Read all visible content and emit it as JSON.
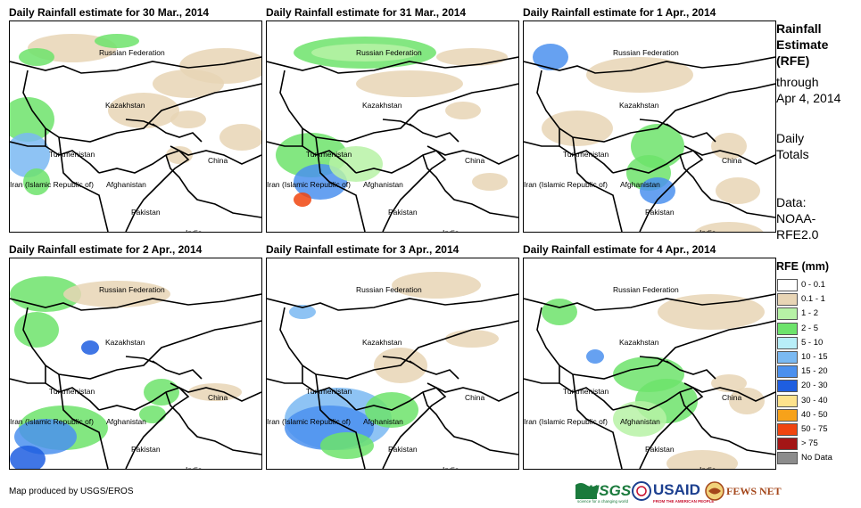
{
  "panels": [
    {
      "title": "Daily Rainfall estimate for 30 Mar., 2014"
    },
    {
      "title": "Daily Rainfall estimate for 31 Mar., 2014"
    },
    {
      "title": "Daily Rainfall estimate for 1 Apr., 2014"
    },
    {
      "title": "Daily Rainfall estimate for 2 Apr., 2014"
    },
    {
      "title": "Daily Rainfall estimate for 3 Apr., 2014"
    },
    {
      "title": "Daily Rainfall estimate for 4 Apr., 2014"
    }
  ],
  "countries": {
    "russia": "Russian Federation",
    "kazakhstan": "Kazakhstan",
    "turkmenistan": "Turkmenistan",
    "china": "China",
    "iran": "Iran  (Islamic Republic of)",
    "afghanistan": "Afghanistan",
    "pakistan": "Pakistan",
    "india": "India"
  },
  "side": {
    "line1": "Rainfall",
    "line2": "Estimate",
    "line3": "(RFE)",
    "line4": "through",
    "line5": "Apr 4, 2014",
    "line6": "Daily",
    "line7": "Totals",
    "line8": "Data:",
    "line9": "NOAA-",
    "line10": "RFE2.0"
  },
  "legend": {
    "title": "RFE (mm)",
    "items": [
      {
        "label": "0 - 0.1",
        "color": "#ffffff"
      },
      {
        "label": "0.1 - 1",
        "color": "#e8d5b5"
      },
      {
        "label": "1 - 2",
        "color": "#b7f2a6"
      },
      {
        "label": "2 - 5",
        "color": "#6de36b"
      },
      {
        "label": "5 - 10",
        "color": "#b8eef8"
      },
      {
        "label": "10 - 15",
        "color": "#7ab9f2"
      },
      {
        "label": "15 - 20",
        "color": "#4b90ee"
      },
      {
        "label": "20 - 30",
        "color": "#1e5ee0"
      },
      {
        "label": "30 - 40",
        "color": "#fde28c"
      },
      {
        "label": "40 - 50",
        "color": "#f7a21a"
      },
      {
        "label": "50 - 75",
        "color": "#f0450f"
      },
      {
        "label": "> 75",
        "color": "#a31616"
      },
      {
        "label": "No Data",
        "color": "#8c8c8c"
      }
    ]
  },
  "footer": "Map produced by USGS/EROS",
  "logos": {
    "usgs": "USGS",
    "usgs_tag": "science for a changing world",
    "usaid": "USAID",
    "usaid_tag": "FROM THE AMERICAN PEOPLE",
    "fews": "FEWS NET"
  }
}
